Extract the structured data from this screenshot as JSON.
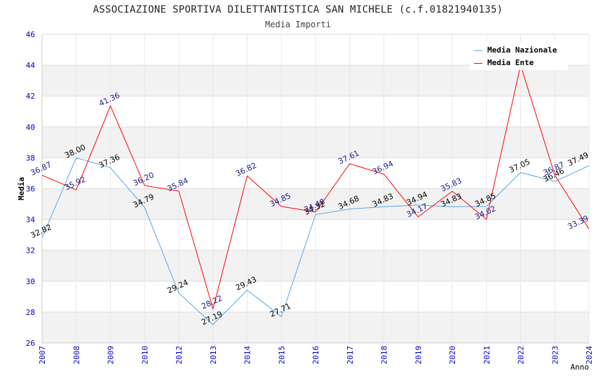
{
  "chart_data": {
    "type": "line",
    "title": "ASSOCIAZIONE SPORTIVA DILETTANTISTICA SAN MICHELE (c.f.01821940135)",
    "subtitle": "Media Importi",
    "ylabel": "Media",
    "xlabel": "Anno",
    "ylim": [
      26,
      46
    ],
    "yticks": [
      26,
      28,
      30,
      32,
      34,
      36,
      38,
      40,
      42,
      44,
      46
    ],
    "grid": true,
    "legend_position": "top-right",
    "categories": [
      "2007",
      "2008",
      "2009",
      "2010",
      "2012",
      "2013",
      "2014",
      "2015",
      "2016",
      "2017",
      "2018",
      "2019",
      "2020",
      "2021",
      "2022",
      "2023",
      "2024"
    ],
    "series": [
      {
        "name": "Media Nazionale",
        "color": "#5aa5e6",
        "label_color": "#000000",
        "values": [
          32.82,
          38.0,
          37.36,
          34.79,
          29.24,
          27.19,
          29.43,
          27.71,
          34.32,
          34.68,
          34.83,
          34.94,
          34.83,
          34.85,
          37.05,
          36.46,
          37.49
        ],
        "labels": [
          "32.82",
          "38.00",
          "37.36",
          "34.79",
          "29.24",
          "27.19",
          "29.43",
          "27.71",
          "34.32",
          "34.68",
          "34.83",
          "34.94",
          "34.83",
          "34.85",
          "37.05",
          "36.46",
          "37.49"
        ]
      },
      {
        "name": "Media Ente",
        "color": "#ff0000",
        "label_color": "#1a1a8c",
        "values": [
          36.87,
          35.92,
          41.36,
          36.2,
          35.84,
          28.22,
          36.82,
          34.85,
          34.48,
          37.61,
          36.94,
          34.17,
          35.83,
          34.02,
          44.0,
          36.87,
          33.39
        ],
        "labels": [
          "36.87",
          "35.92",
          "41.36",
          "36.20",
          "35.84",
          "28.22",
          "36.82",
          "34.85",
          "34.48",
          "37.61",
          "36.94",
          "34.17",
          "35.83",
          "34.02",
          "",
          "36.87",
          "33.39"
        ]
      }
    ]
  },
  "colors": {
    "axis_tick_text": "#0000cc",
    "grid_band": "#f2f2f2",
    "grid_line": "#dddddd"
  }
}
